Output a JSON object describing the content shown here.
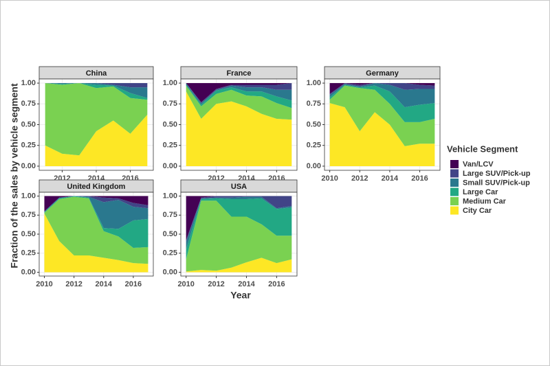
{
  "y_label": "Fraction of the sales by vehicle segment",
  "x_label": "Year",
  "legend_title": "Vehicle Segment",
  "chart_data": [
    {
      "type": "area",
      "title": "China",
      "x": [
        2011,
        2012,
        2013,
        2014,
        2015,
        2016,
        2017
      ],
      "xlim": [
        2010.65,
        2017.35
      ],
      "xticks": [
        2012,
        2014,
        2016
      ],
      "ylim": [
        -0.05,
        1.05
      ],
      "yticks": [
        {
          "value": 0,
          "label": "0.00"
        },
        {
          "value": 0.25,
          "label": "0.25"
        },
        {
          "value": 0.5,
          "label": "0.50"
        },
        {
          "value": 0.75,
          "label": "0.75"
        },
        {
          "value": 1,
          "label": "1.00"
        }
      ],
      "grid": true,
      "series": [
        {
          "name": "City Car",
          "color": "#fde725",
          "values": [
            0.25,
            0.15,
            0.13,
            0.42,
            0.55,
            0.39,
            0.62
          ]
        },
        {
          "name": "Medium Car",
          "color": "#7ad151",
          "values": [
            0.75,
            0.83,
            0.87,
            0.52,
            0.41,
            0.43,
            0.18
          ]
        },
        {
          "name": "Large Car",
          "color": "#22a884",
          "values": [
            0,
            0.01,
            0,
            0.04,
            0.01,
            0.06,
            0.02
          ]
        },
        {
          "name": "Small SUV/Pick-up",
          "color": "#2a788e",
          "values": [
            0,
            0.01,
            0,
            0.02,
            0.01,
            0.07,
            0.13
          ]
        },
        {
          "name": "Large SUV/Pick-up",
          "color": "#414487",
          "values": [
            0,
            0,
            0,
            0,
            0.02,
            0.05,
            0.05
          ]
        },
        {
          "name": "Van/LCV",
          "color": "#440154",
          "values": [
            0,
            0,
            0,
            0,
            0,
            0,
            0
          ]
        }
      ]
    },
    {
      "type": "area",
      "title": "France",
      "x": [
        2010,
        2011,
        2012,
        2013,
        2014,
        2015,
        2016,
        2017
      ],
      "xlim": [
        2009.65,
        2017.35
      ],
      "xticks": [
        2012,
        2014,
        2016
      ],
      "ylim": [
        -0.05,
        1.05
      ],
      "yticks": [
        {
          "value": 0,
          "label": "0.00"
        },
        {
          "value": 0.25,
          "label": "0.25"
        },
        {
          "value": 0.5,
          "label": "0.50"
        },
        {
          "value": 0.75,
          "label": "0.75"
        },
        {
          "value": 1,
          "label": "1.00"
        }
      ],
      "grid": true,
      "series": [
        {
          "name": "City Car",
          "color": "#fde725",
          "values": [
            0.9,
            0.57,
            0.75,
            0.78,
            0.72,
            0.63,
            0.57,
            0.56
          ]
        },
        {
          "name": "Medium Car",
          "color": "#7ad151",
          "values": [
            0.07,
            0.15,
            0.12,
            0.14,
            0.13,
            0.21,
            0.19,
            0.14
          ]
        },
        {
          "name": "Large Car",
          "color": "#22a884",
          "values": [
            0.01,
            0.02,
            0.04,
            0.03,
            0.05,
            0.06,
            0.08,
            0.09
          ]
        },
        {
          "name": "Small SUV/Pick-up",
          "color": "#2a788e",
          "values": [
            0.02,
            0.02,
            0.01,
            0.02,
            0.05,
            0.05,
            0.08,
            0.13
          ]
        },
        {
          "name": "Large SUV/Pick-up",
          "color": "#414487",
          "values": [
            0,
            0.01,
            0.01,
            0.01,
            0.03,
            0.03,
            0.06,
            0.08
          ]
        },
        {
          "name": "Van/LCV",
          "color": "#440154",
          "values": [
            0,
            0.23,
            0.07,
            0.02,
            0.02,
            0.02,
            0.02,
            0
          ]
        }
      ]
    },
    {
      "type": "area",
      "title": "Germany",
      "x": [
        2010,
        2011,
        2012,
        2013,
        2014,
        2015,
        2016,
        2017
      ],
      "xlim": [
        2009.65,
        2017.35
      ],
      "xticks": [
        2010,
        2012,
        2014,
        2016
      ],
      "ylim": [
        -0.05,
        1.05
      ],
      "yticks": [
        {
          "value": 0,
          "label": "0.00"
        },
        {
          "value": 0.25,
          "label": "0.25"
        },
        {
          "value": 0.5,
          "label": "0.50"
        },
        {
          "value": 0.75,
          "label": "0.75"
        },
        {
          "value": 1,
          "label": "1.00"
        }
      ],
      "grid": true,
      "series": [
        {
          "name": "City Car",
          "color": "#fde725",
          "values": [
            0.76,
            0.71,
            0.42,
            0.65,
            0.5,
            0.24,
            0.27,
            0.27
          ]
        },
        {
          "name": "Medium Car",
          "color": "#7ad151",
          "values": [
            0.04,
            0.26,
            0.52,
            0.27,
            0.25,
            0.29,
            0.26,
            0.3
          ]
        },
        {
          "name": "Large Car",
          "color": "#22a884",
          "values": [
            0.03,
            0.01,
            0.01,
            0.05,
            0.15,
            0.18,
            0.21,
            0.19
          ]
        },
        {
          "name": "Small SUV/Pick-up",
          "color": "#2a788e",
          "values": [
            0.03,
            0.01,
            0.01,
            0.03,
            0.08,
            0.21,
            0.19,
            0.17
          ]
        },
        {
          "name": "Large SUV/Pick-up",
          "color": "#414487",
          "values": [
            0.01,
            0.01,
            0.02,
            0,
            0.02,
            0.08,
            0.05,
            0.04
          ]
        },
        {
          "name": "Van/LCV",
          "color": "#440154",
          "values": [
            0.13,
            0,
            0.02,
            0,
            0,
            0,
            0.02,
            0.03
          ]
        }
      ]
    },
    {
      "type": "area",
      "title": "United Kingdom",
      "x": [
        2010,
        2011,
        2012,
        2013,
        2014,
        2015,
        2016,
        2017
      ],
      "xlim": [
        2009.65,
        2017.35
      ],
      "xticks": [
        2010,
        2012,
        2014,
        2016
      ],
      "ylim": [
        -0.05,
        1.05
      ],
      "yticks": [
        {
          "value": 0,
          "label": "0.00"
        },
        {
          "value": 0.25,
          "label": "0.25"
        },
        {
          "value": 0.5,
          "label": "0.50"
        },
        {
          "value": 0.75,
          "label": "0.75"
        },
        {
          "value": 1,
          "label": "1.00"
        }
      ],
      "grid": true,
      "series": [
        {
          "name": "City Car",
          "color": "#fde725",
          "values": [
            0.77,
            0.41,
            0.22,
            0.22,
            0.19,
            0.16,
            0.12,
            0.11
          ]
        },
        {
          "name": "Medium Car",
          "color": "#7ad151",
          "values": [
            0.01,
            0.55,
            0.77,
            0.75,
            0.35,
            0.31,
            0.2,
            0.22
          ]
        },
        {
          "name": "Large Car",
          "color": "#22a884",
          "values": [
            0.01,
            0.01,
            0.01,
            0.01,
            0.04,
            0.1,
            0.36,
            0.37
          ]
        },
        {
          "name": "Small SUV/Pick-up",
          "color": "#2a788e",
          "values": [
            0.01,
            0.01,
            0,
            0.01,
            0.34,
            0.38,
            0.18,
            0.14
          ]
        },
        {
          "name": "Large SUV/Pick-up",
          "color": "#414487",
          "values": [
            0,
            0,
            0,
            0.01,
            0.06,
            0.02,
            0.05,
            0.04
          ]
        },
        {
          "name": "Van/LCV",
          "color": "#440154",
          "values": [
            0.2,
            0.02,
            0,
            0,
            0.02,
            0.03,
            0.09,
            0.12
          ]
        }
      ]
    },
    {
      "type": "area",
      "title": "USA",
      "x": [
        2010,
        2011,
        2012,
        2013,
        2014,
        2015,
        2016,
        2017
      ],
      "xlim": [
        2009.65,
        2017.35
      ],
      "xticks": [
        2010,
        2012,
        2014,
        2016
      ],
      "ylim": [
        -0.05,
        1.05
      ],
      "yticks": [
        {
          "value": 0,
          "label": "0.00"
        },
        {
          "value": 0.25,
          "label": "0.25"
        },
        {
          "value": 0.5,
          "label": "0.50"
        },
        {
          "value": 0.75,
          "label": "0.75"
        },
        {
          "value": 1,
          "label": "1.00"
        }
      ],
      "grid": true,
      "series": [
        {
          "name": "City Car",
          "color": "#fde725",
          "values": [
            0.01,
            0.03,
            0.02,
            0.06,
            0.13,
            0.19,
            0.12,
            0.17
          ]
        },
        {
          "name": "Medium Car",
          "color": "#7ad151",
          "values": [
            0.16,
            0.91,
            0.92,
            0.67,
            0.6,
            0.44,
            0.36,
            0.31
          ]
        },
        {
          "name": "Large Car",
          "color": "#22a884",
          "values": [
            0.13,
            0.02,
            0.03,
            0.23,
            0.23,
            0.34,
            0.35,
            0.37
          ]
        },
        {
          "name": "Small SUV/Pick-up",
          "color": "#2a788e",
          "values": [
            0.1,
            0.01,
            0.01,
            0.02,
            0.03,
            0.02,
            0.01,
            0.02
          ]
        },
        {
          "name": "Large SUV/Pick-up",
          "color": "#414487",
          "values": [
            0.02,
            0.01,
            0.02,
            0.02,
            0.01,
            0.01,
            0.16,
            0.13
          ]
        },
        {
          "name": "Van/LCV",
          "color": "#440154",
          "values": [
            0.58,
            0.02,
            0,
            0,
            0,
            0,
            0,
            0
          ]
        }
      ]
    }
  ]
}
